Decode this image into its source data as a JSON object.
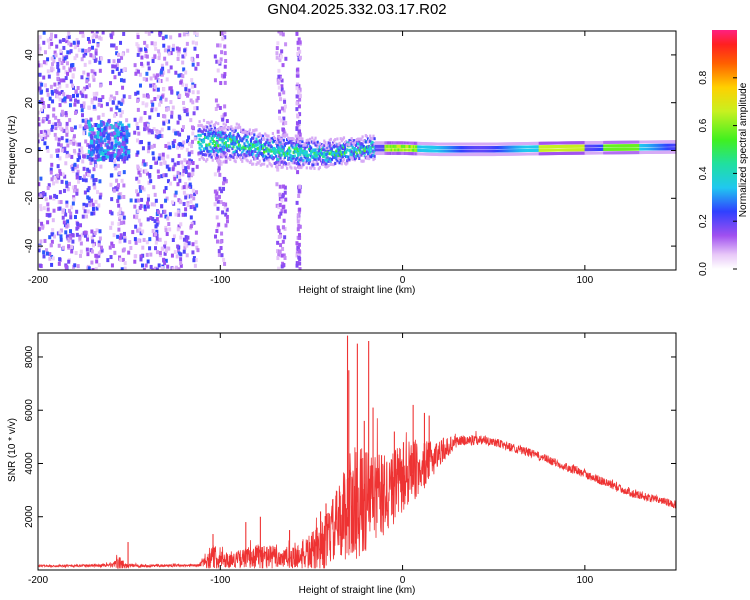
{
  "title": "GN04.2025.332.03.17.R02",
  "chart_data": [
    {
      "type": "heatmap",
      "xlabel": "Height of straight line (km)",
      "ylabel": "Frequency (Hz)",
      "xlim": [
        -200,
        150
      ],
      "ylim": [
        -50,
        50
      ],
      "xticks": [
        -200,
        -100,
        0,
        100
      ],
      "yticks": [
        -40,
        -20,
        0,
        20,
        40
      ],
      "colorbar": {
        "label": "Normalized spectral amplitude",
        "range": [
          0,
          1
        ],
        "ticks": [
          "0.0",
          "0.2",
          "0.4",
          "0.6",
          "0.8"
        ]
      },
      "grid": false,
      "features": {
        "noise_scatter_x": [
          -200,
          -112
        ],
        "noise_gaps_x": [
          [
            -165,
            -160
          ],
          [
            -152,
            -147
          ]
        ],
        "noise_stripes_x": [
          [
            -103,
            -96
          ],
          [
            -69,
            -64
          ],
          [
            -58,
            -56
          ]
        ],
        "signal_band_x": [
          -112,
          150
        ],
        "signal_center_hz": [
          [
            -112,
            4
          ],
          [
            -90,
            3
          ],
          [
            -70,
            0
          ],
          [
            -55,
            -1
          ],
          [
            -40,
            -1.5
          ],
          [
            -30,
            0
          ],
          [
            -20,
            1
          ],
          [
            0,
            1
          ],
          [
            20,
            0.5
          ],
          [
            50,
            0.5
          ],
          [
            90,
            1
          ],
          [
            150,
            1.5
          ]
        ],
        "low_alt_cluster": {
          "x": [
            -172,
            -150
          ],
          "center_hz": 4
        }
      }
    },
    {
      "type": "line",
      "xlabel": "Height of straight line (km)",
      "ylabel": "SNR (10 * v/v)",
      "xlim": [
        -200,
        150
      ],
      "ylim": [
        0,
        8900
      ],
      "xticks": [
        -200,
        -100,
        0,
        100
      ],
      "yticks": [
        2000,
        4000,
        6000,
        8000
      ],
      "grid": false,
      "series": [
        {
          "color": "#ee3333",
          "envelope": [
            {
              "x": -200,
              "base": 150,
              "noise": 30
            },
            {
              "x": -160,
              "base": 170,
              "noise": 60
            },
            {
              "x": -155,
              "base": 200,
              "noise": 300
            },
            {
              "x": -150,
              "base": 160,
              "noise": 60
            },
            {
              "x": -112,
              "base": 170,
              "noise": 40
            },
            {
              "x": -105,
              "base": 500,
              "noise": 500
            },
            {
              "x": -95,
              "base": 350,
              "noise": 250
            },
            {
              "x": -80,
              "base": 500,
              "noise": 500
            },
            {
              "x": -60,
              "base": 450,
              "noise": 400
            },
            {
              "x": -45,
              "base": 800,
              "noise": 900
            },
            {
              "x": -35,
              "base": 1800,
              "noise": 1400
            },
            {
              "x": -28,
              "base": 2500,
              "noise": 2200
            },
            {
              "x": -20,
              "base": 2600,
              "noise": 2000
            },
            {
              "x": -10,
              "base": 2800,
              "noise": 1600
            },
            {
              "x": 0,
              "base": 3400,
              "noise": 1300
            },
            {
              "x": 10,
              "base": 3800,
              "noise": 1000
            },
            {
              "x": 20,
              "base": 4400,
              "noise": 500
            },
            {
              "x": 30,
              "base": 4850,
              "noise": 220
            },
            {
              "x": 45,
              "base": 4900,
              "noise": 180
            },
            {
              "x": 70,
              "base": 4400,
              "noise": 160
            },
            {
              "x": 100,
              "base": 3600,
              "noise": 160
            },
            {
              "x": 125,
              "base": 2900,
              "noise": 150
            },
            {
              "x": 150,
              "base": 2450,
              "noise": 150
            }
          ],
          "spikes": [
            {
              "x": -30.2,
              "y": 8800
            },
            {
              "x": -29.5,
              "y": 7500
            },
            {
              "x": -24.8,
              "y": 8500
            },
            {
              "x": -18.6,
              "y": 8600
            },
            {
              "x": -16.2,
              "y": 6100
            },
            {
              "x": -21.0,
              "y": 5600
            },
            {
              "x": 5.8,
              "y": 6200
            },
            {
              "x": 12.0,
              "y": 5900
            },
            {
              "x": 14.6,
              "y": 5800
            },
            {
              "x": 0.5,
              "y": 4800
            },
            {
              "x": -4.5,
              "y": 5200
            },
            {
              "x": -78.0,
              "y": 2000
            },
            {
              "x": -86.0,
              "y": 1800
            },
            {
              "x": -62.0,
              "y": 1500
            },
            {
              "x": -45.0,
              "y": 2200
            },
            {
              "x": -42.0,
              "y": 2500
            },
            {
              "x": -104.0,
              "y": 1350
            },
            {
              "x": -150.6,
              "y": 1050
            }
          ]
        }
      ]
    }
  ]
}
